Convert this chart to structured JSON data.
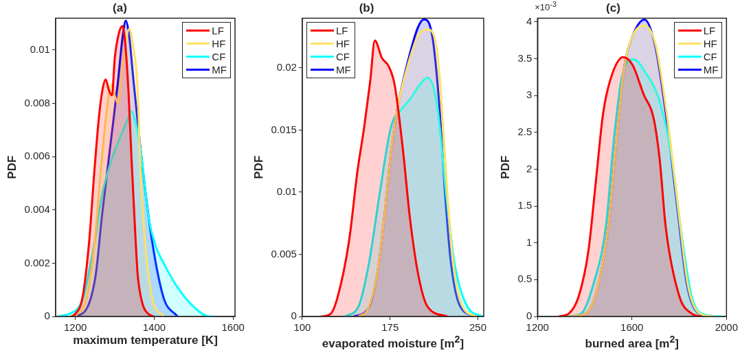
{
  "chart_data": [
    {
      "type": "area",
      "title": "(a)",
      "xlabel": "maximum temperature [K]",
      "ylabel": "PDF",
      "xlim": [
        1150,
        1605
      ],
      "xticks": [
        1200,
        1400,
        1600
      ],
      "ylim": [
        0,
        0.0112
      ],
      "yticks": [
        0,
        0.002,
        0.004,
        0.006,
        0.008,
        0.01
      ],
      "grid": false,
      "legend": "top right",
      "marker": "none",
      "line_style": "solid",
      "series": [
        {
          "name": "LF",
          "color": "#ff0000",
          "x": [
            1190,
            1200,
            1218,
            1235,
            1248,
            1260,
            1270,
            1277,
            1285,
            1293,
            1300,
            1310,
            1319,
            1325,
            1335,
            1342,
            1350,
            1358,
            1370,
            1385,
            1400
          ],
          "values": [
            0,
            0.0001,
            0.0007,
            0.0028,
            0.0054,
            0.0075,
            0.0086,
            0.0089,
            0.0085,
            0.0083,
            0.0097,
            0.0106,
            0.0109,
            0.0105,
            0.0084,
            0.0061,
            0.0037,
            0.0016,
            0.0005,
            0.0001,
            0
          ]
        },
        {
          "name": "HF",
          "color": "#ffe066",
          "x": [
            1195,
            1206,
            1229,
            1249,
            1264,
            1278,
            1291,
            1300,
            1308,
            1320,
            1337,
            1347,
            1357,
            1366,
            1377,
            1395,
            1424
          ],
          "values": [
            0,
            0.0001,
            0.0007,
            0.0028,
            0.0054,
            0.0075,
            0.0087,
            0.0083,
            0.008,
            0.0094,
            0.0108,
            0.0101,
            0.0088,
            0.0054,
            0.0028,
            0.0007,
            0
          ]
        },
        {
          "name": "CF",
          "color": "#00ffff",
          "x": [
            1156,
            1185,
            1206,
            1220,
            1249,
            1267,
            1290,
            1313,
            1330,
            1342,
            1354,
            1366,
            1386,
            1405,
            1424,
            1459,
            1505,
            1540,
            1552
          ],
          "values": [
            0,
            0.0001,
            0.0003,
            0.0007,
            0.0028,
            0.0045,
            0.0058,
            0.0067,
            0.0073,
            0.0077,
            0.0072,
            0.0062,
            0.0037,
            0.0026,
            0.002,
            0.0011,
            0.0003,
            0,
            0
          ]
        },
        {
          "name": "MF",
          "color": "#0000ff",
          "x": [
            1197,
            1229,
            1252,
            1267,
            1287,
            1308,
            1320,
            1328,
            1336,
            1348,
            1372,
            1395,
            1424,
            1459
          ],
          "values": [
            0,
            0.0003,
            0.0016,
            0.0037,
            0.0062,
            0.0088,
            0.0105,
            0.0111,
            0.0106,
            0.0088,
            0.0054,
            0.0028,
            0.0007,
            0
          ]
        }
      ]
    },
    {
      "type": "area",
      "title": "(b)",
      "xlabel": "evaporated moisture [m$^{2}$]",
      "ylabel": "PDF",
      "xlim": [
        100,
        255
      ],
      "xticks": [
        100,
        175,
        250
      ],
      "ylim": [
        0,
        0.024
      ],
      "yticks": [
        0,
        0.005,
        0.01,
        0.015,
        0.02
      ],
      "grid": false,
      "legend": "top left",
      "marker": "none",
      "line_style": "solid",
      "series": [
        {
          "name": "LF",
          "color": "#ff0000",
          "x": [
            116,
            124,
            130,
            140,
            147,
            153,
            158,
            162,
            168,
            174,
            179,
            186,
            192,
            199,
            207,
            224
          ],
          "values": [
            0,
            0.0002,
            0.0015,
            0.0061,
            0.0116,
            0.0153,
            0.0189,
            0.0222,
            0.0208,
            0.0201,
            0.0186,
            0.0134,
            0.0079,
            0.0034,
            0.0008,
            0
          ]
        },
        {
          "name": "HF",
          "color": "#ffe066",
          "x": [
            148,
            156,
            164,
            170,
            176,
            182,
            191,
            199,
            207,
            215,
            219,
            224,
            229,
            237,
            249
          ],
          "values": [
            0,
            0.0006,
            0.0034,
            0.0079,
            0.0134,
            0.0171,
            0.0205,
            0.0226,
            0.0231,
            0.0215,
            0.0171,
            0.0098,
            0.0043,
            0.0008,
            0
          ]
        },
        {
          "name": "CF",
          "color": "#00ffff",
          "x": [
            136,
            148,
            157,
            166,
            176,
            185,
            193,
            200,
            207,
            215,
            223,
            230,
            241,
            254
          ],
          "values": [
            0,
            0.0008,
            0.0043,
            0.0098,
            0.0153,
            0.0167,
            0.0176,
            0.0186,
            0.0192,
            0.0171,
            0.0098,
            0.0043,
            0.0008,
            0
          ]
        },
        {
          "name": "MF",
          "color": "#0000ff",
          "x": [
            144,
            156,
            164,
            170,
            176,
            182,
            191,
            199,
            204,
            211,
            217,
            222,
            227,
            235,
            249
          ],
          "values": [
            0,
            0.0006,
            0.0034,
            0.0079,
            0.0134,
            0.0171,
            0.0208,
            0.0233,
            0.0239,
            0.0226,
            0.0171,
            0.0098,
            0.0043,
            0.0008,
            0
          ]
        }
      ]
    },
    {
      "type": "area",
      "title": "(c)",
      "xlabel": "burned area [m$^{2}$]",
      "ylabel": "PDF",
      "annotations": [
        "×10$^{-3}$"
      ],
      "xlim": [
        1200,
        2000
      ],
      "xticks": [
        1200,
        1600,
        2000
      ],
      "ylim": [
        0,
        4.05
      ],
      "yticks": [
        0,
        0.5,
        1,
        1.5,
        2,
        2.5,
        3,
        3.5,
        4
      ],
      "grid": false,
      "legend": "top right",
      "marker": "none",
      "line_style": "solid",
      "series": [
        {
          "name": "LF",
          "color": "#ff0000",
          "x": [
            1291,
            1333,
            1375,
            1416,
            1447,
            1478,
            1510,
            1562,
            1603,
            1650,
            1691,
            1717,
            1743,
            1800,
            1852,
            1894
          ],
          "values": [
            0,
            0.04,
            0.28,
            0.9,
            1.83,
            2.76,
            3.23,
            3.52,
            3.41,
            3.01,
            2.7,
            2.14,
            1.21,
            0.28,
            0.04,
            0
          ]
        },
        {
          "name": "HF",
          "color": "#ffe066",
          "x": [
            1333,
            1406,
            1458,
            1499,
            1536,
            1567,
            1603,
            1653,
            1700,
            1747,
            1794,
            1836,
            1888,
            1950
          ],
          "values": [
            0,
            0.04,
            0.44,
            1.21,
            2.45,
            3.38,
            3.81,
            3.95,
            3.69,
            2.76,
            1.52,
            0.44,
            0.04,
            0
          ]
        },
        {
          "name": "CF",
          "color": "#00ffff",
          "x": [
            1323,
            1385,
            1437,
            1489,
            1525,
            1556,
            1608,
            1655,
            1717,
            1769,
            1806,
            1852,
            1915,
            1982
          ],
          "values": [
            0,
            0.04,
            0.44,
            1.21,
            2.45,
            3.23,
            3.49,
            3.32,
            2.92,
            2.14,
            1.21,
            0.28,
            0.02,
            0
          ]
        },
        {
          "name": "MF",
          "color": "#0000ff",
          "x": [
            1333,
            1406,
            1458,
            1499,
            1536,
            1567,
            1603,
            1653,
            1697,
            1743,
            1790,
            1832,
            1884,
            1946
          ],
          "values": [
            0,
            0.04,
            0.44,
            1.21,
            2.45,
            3.38,
            3.81,
            4.03,
            3.69,
            2.76,
            1.52,
            0.44,
            0.04,
            0
          ]
        }
      ]
    }
  ]
}
